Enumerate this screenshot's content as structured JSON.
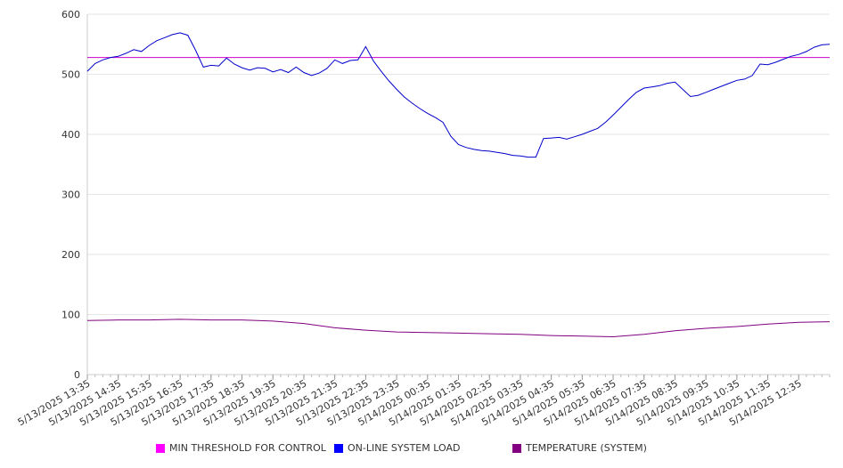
{
  "chart_data": {
    "type": "line",
    "x_ticks": [
      "5/13/2025 13:35",
      "5/13/2025 14:35",
      "5/13/2025 15:35",
      "5/13/2025 16:35",
      "5/13/2025 17:35",
      "5/13/2025 18:35",
      "5/13/2025 19:35",
      "5/13/2025 20:35",
      "5/13/2025 21:35",
      "5/13/2025 22:35",
      "5/13/2025 23:35",
      "5/14/2025 00:35",
      "5/14/2025 01:35",
      "5/14/2025 02:35",
      "5/14/2025 03:35",
      "5/14/2025 04:35",
      "5/14/2025 05:35",
      "5/14/2025 06:35",
      "5/14/2025 07:35",
      "5/14/2025 08:35",
      "5/14/2025 09:35",
      "5/14/2025 10:35",
      "5/14/2025 11:35",
      "5/14/2025 12:35"
    ],
    "x_range": [
      "5/13/2025 13:35",
      "5/14/2025 13:35"
    ],
    "ylim": [
      0,
      600
    ],
    "y_ticks": [
      0,
      100,
      200,
      300,
      400,
      500,
      600
    ],
    "grid": true,
    "legend_position": "bottom",
    "series": [
      {
        "name": "MIN THRESHOLD FOR CONTROL",
        "color": "#cc00cc",
        "points": [
          [
            "5/13/2025 13:35",
            528
          ],
          [
            "5/14/2025 13:35",
            528
          ]
        ]
      },
      {
        "name": "ON-LINE SYSTEM LOAD",
        "color": "#0000cc",
        "points": [
          [
            "5/13/2025 13:35",
            505
          ],
          [
            "5/13/2025 13:50",
            518
          ],
          [
            "5/13/2025 14:05",
            524
          ],
          [
            "5/13/2025 14:20",
            528
          ],
          [
            "5/13/2025 14:35",
            530
          ],
          [
            "5/13/2025 14:50",
            535
          ],
          [
            "5/13/2025 15:05",
            541
          ],
          [
            "5/13/2025 15:20",
            538
          ],
          [
            "5/13/2025 15:35",
            548
          ],
          [
            "5/13/2025 15:50",
            556
          ],
          [
            "5/13/2025 16:05",
            561
          ],
          [
            "5/13/2025 16:20",
            566
          ],
          [
            "5/13/2025 16:35",
            569
          ],
          [
            "5/13/2025 16:50",
            565
          ],
          [
            "5/13/2025 17:05",
            540
          ],
          [
            "5/13/2025 17:20",
            512
          ],
          [
            "5/13/2025 17:35",
            515
          ],
          [
            "5/13/2025 17:50",
            514
          ],
          [
            "5/13/2025 18:05",
            527
          ],
          [
            "5/13/2025 18:20",
            517
          ],
          [
            "5/13/2025 18:35",
            511
          ],
          [
            "5/13/2025 18:50",
            507
          ],
          [
            "5/13/2025 19:05",
            511
          ],
          [
            "5/13/2025 19:20",
            510
          ],
          [
            "5/13/2025 19:35",
            504
          ],
          [
            "5/13/2025 19:50",
            508
          ],
          [
            "5/13/2025 20:05",
            503
          ],
          [
            "5/13/2025 20:20",
            512
          ],
          [
            "5/13/2025 20:35",
            503
          ],
          [
            "5/13/2025 20:50",
            498
          ],
          [
            "5/13/2025 21:05",
            502
          ],
          [
            "5/13/2025 21:20",
            510
          ],
          [
            "5/13/2025 21:35",
            524
          ],
          [
            "5/13/2025 21:50",
            518
          ],
          [
            "5/13/2025 22:05",
            523
          ],
          [
            "5/13/2025 22:20",
            524
          ],
          [
            "5/13/2025 22:35",
            546
          ],
          [
            "5/13/2025 22:50",
            522
          ],
          [
            "5/13/2025 23:05",
            505
          ],
          [
            "5/13/2025 23:20",
            489
          ],
          [
            "5/13/2025 23:35",
            475
          ],
          [
            "5/13/2025 23:50",
            462
          ],
          [
            "5/14/2025 00:05",
            452
          ],
          [
            "5/14/2025 00:20",
            443
          ],
          [
            "5/14/2025 00:35",
            435
          ],
          [
            "5/14/2025 00:50",
            428
          ],
          [
            "5/14/2025 01:05",
            420
          ],
          [
            "5/14/2025 01:20",
            397
          ],
          [
            "5/14/2025 01:35",
            383
          ],
          [
            "5/14/2025 01:50",
            378
          ],
          [
            "5/14/2025 02:05",
            375
          ],
          [
            "5/14/2025 02:20",
            373
          ],
          [
            "5/14/2025 02:35",
            372
          ],
          [
            "5/14/2025 02:50",
            370
          ],
          [
            "5/14/2025 03:05",
            368
          ],
          [
            "5/14/2025 03:20",
            365
          ],
          [
            "5/14/2025 03:35",
            364
          ],
          [
            "5/14/2025 03:50",
            362
          ],
          [
            "5/14/2025 04:05",
            362
          ],
          [
            "5/14/2025 04:20",
            393
          ],
          [
            "5/14/2025 04:35",
            394
          ],
          [
            "5/14/2025 04:50",
            395
          ],
          [
            "5/14/2025 05:05",
            392
          ],
          [
            "5/14/2025 05:20",
            396
          ],
          [
            "5/14/2025 05:35",
            400
          ],
          [
            "5/14/2025 05:50",
            405
          ],
          [
            "5/14/2025 06:05",
            410
          ],
          [
            "5/14/2025 06:20",
            420
          ],
          [
            "5/14/2025 06:35",
            432
          ],
          [
            "5/14/2025 06:50",
            445
          ],
          [
            "5/14/2025 07:05",
            458
          ],
          [
            "5/14/2025 07:20",
            470
          ],
          [
            "5/14/2025 07:35",
            477
          ],
          [
            "5/14/2025 07:50",
            479
          ],
          [
            "5/14/2025 08:05",
            481
          ],
          [
            "5/14/2025 08:20",
            485
          ],
          [
            "5/14/2025 08:35",
            487
          ],
          [
            "5/14/2025 08:50",
            475
          ],
          [
            "5/14/2025 09:05",
            463
          ],
          [
            "5/14/2025 09:20",
            465
          ],
          [
            "5/14/2025 09:35",
            470
          ],
          [
            "5/14/2025 09:50",
            475
          ],
          [
            "5/14/2025 10:05",
            480
          ],
          [
            "5/14/2025 10:20",
            485
          ],
          [
            "5/14/2025 10:35",
            490
          ],
          [
            "5/14/2025 10:50",
            492
          ],
          [
            "5/14/2025 11:05",
            498
          ],
          [
            "5/14/2025 11:20",
            517
          ],
          [
            "5/14/2025 11:35",
            516
          ],
          [
            "5/14/2025 11:50",
            520
          ],
          [
            "5/14/2025 12:05",
            525
          ],
          [
            "5/14/2025 12:20",
            530
          ],
          [
            "5/14/2025 12:35",
            533
          ],
          [
            "5/14/2025 12:50",
            538
          ],
          [
            "5/14/2025 13:05",
            545
          ],
          [
            "5/14/2025 13:20",
            549
          ],
          [
            "5/14/2025 13:35",
            550
          ]
        ]
      },
      {
        "name": "TEMPERATURE (SYSTEM)",
        "color": "#800080",
        "points": [
          [
            "5/13/2025 13:35",
            90
          ],
          [
            "5/13/2025 14:35",
            91
          ],
          [
            "5/13/2025 15:35",
            91
          ],
          [
            "5/13/2025 16:35",
            92
          ],
          [
            "5/13/2025 17:35",
            91
          ],
          [
            "5/13/2025 18:35",
            91
          ],
          [
            "5/13/2025 19:35",
            89
          ],
          [
            "5/13/2025 20:35",
            85
          ],
          [
            "5/13/2025 21:35",
            78
          ],
          [
            "5/13/2025 22:35",
            74
          ],
          [
            "5/13/2025 23:35",
            71
          ],
          [
            "5/14/2025 00:35",
            70
          ],
          [
            "5/14/2025 01:35",
            69
          ],
          [
            "5/14/2025 02:35",
            68
          ],
          [
            "5/14/2025 03:35",
            67
          ],
          [
            "5/14/2025 04:35",
            65
          ],
          [
            "5/14/2025 05:35",
            64
          ],
          [
            "5/14/2025 06:35",
            63
          ],
          [
            "5/14/2025 07:35",
            67
          ],
          [
            "5/14/2025 08:35",
            73
          ],
          [
            "5/14/2025 09:35",
            77
          ],
          [
            "5/14/2025 10:35",
            80
          ],
          [
            "5/14/2025 11:35",
            84
          ],
          [
            "5/14/2025 12:35",
            87
          ],
          [
            "5/14/2025 13:35",
            88
          ]
        ]
      }
    ]
  },
  "legend": [
    {
      "label": "MIN THRESHOLD FOR CONTROL",
      "color": "#ff00ff"
    },
    {
      "label": "ON-LINE SYSTEM LOAD",
      "color": "#0000ff"
    },
    {
      "label": "TEMPERATURE (SYSTEM)",
      "color": "#800080"
    }
  ]
}
